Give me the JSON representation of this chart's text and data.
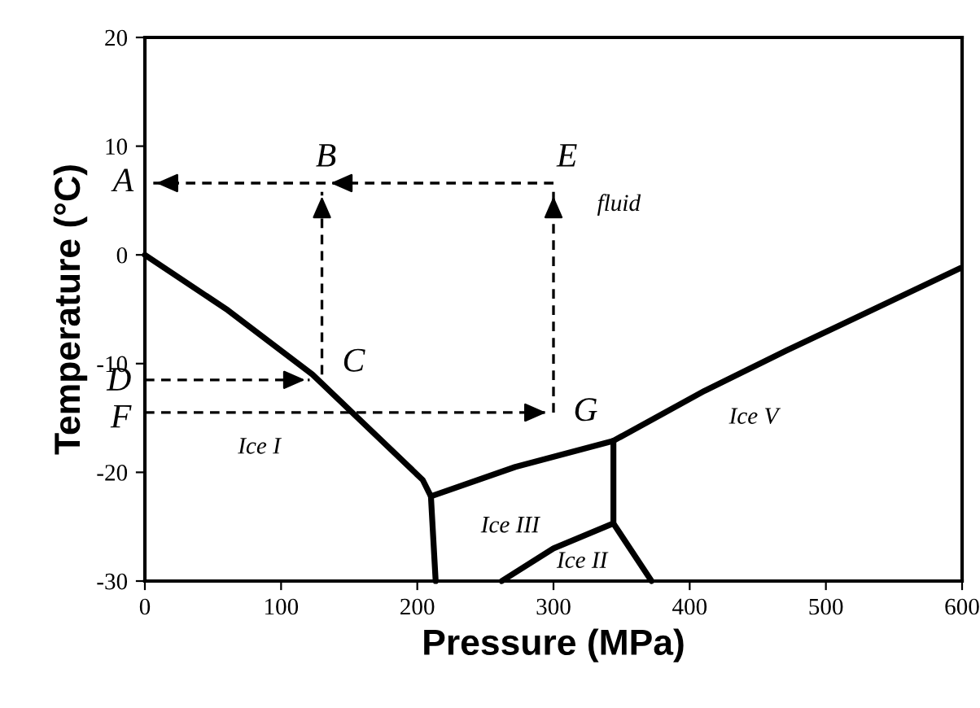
{
  "chart_data": {
    "type": "line",
    "xlabel": "Pressure (MPa)",
    "ylabel": "Temperature (°C)",
    "xlim": [
      0,
      600
    ],
    "xticks": [
      0,
      100,
      200,
      300,
      400,
      500,
      600
    ],
    "ylim": [
      -30,
      20
    ],
    "yticks": [
      -30,
      -20,
      -10,
      0,
      10,
      20
    ],
    "grid": false,
    "legend": false,
    "marker": "none",
    "series": [
      {
        "color": "#000000",
        "line_style": "solid",
        "x": [
          0,
          61,
          123,
          204,
          210,
          213.5
        ],
        "values": [
          0,
          -5.1,
          -11.0,
          -20.7,
          -22.2,
          -30
        ]
      },
      {
        "color": "#000000",
        "line_style": "solid",
        "x": [
          210,
          272,
          344,
          411,
          471,
          599
        ],
        "values": [
          -22.2,
          -19.5,
          -17.1,
          -12.5,
          -8.8,
          -1.2
        ]
      },
      {
        "color": "#000000",
        "line_style": "solid",
        "x": [
          344,
          344,
          372
        ],
        "values": [
          -17.1,
          -24.7,
          -30
        ]
      },
      {
        "color": "#000000",
        "line_style": "solid",
        "x": [
          344,
          300,
          262
        ],
        "values": [
          -24.7,
          -27,
          -30
        ]
      },
      {
        "color": "#000000",
        "line_style": "dashed",
        "x": [
          300,
          133,
          5
        ],
        "values": [
          6.6,
          6.6,
          6.6
        ]
      },
      {
        "color": "#000000",
        "line_style": "dashed",
        "x": [
          130,
          130
        ],
        "values": [
          -11,
          5.8
        ]
      },
      {
        "color": "#000000",
        "line_style": "dashed",
        "x": [
          0,
          121
        ],
        "values": [
          -11.5,
          -11.5
        ]
      },
      {
        "color": "#000000",
        "line_style": "dashed",
        "x": [
          0,
          298
        ],
        "values": [
          -14.5,
          -14.5
        ]
      },
      {
        "color": "#000000",
        "line_style": "dashed",
        "x": [
          300,
          300
        ],
        "values": [
          -14.5,
          5.8
        ]
      }
    ],
    "annotations": [
      {
        "text": "A",
        "x": 5,
        "y": 6.6
      },
      {
        "text": "B",
        "x": 133,
        "y": 6.6
      },
      {
        "text": "E",
        "x": 300,
        "y": 6.6
      },
      {
        "text": "C",
        "x": 130,
        "y": -11
      },
      {
        "text": "D",
        "x": 0,
        "y": -11.5
      },
      {
        "text": "F",
        "x": 0,
        "y": -14.5
      },
      {
        "text": "G",
        "x": 298,
        "y": -14.5
      },
      "fluid",
      "Ice I",
      "Ice III",
      "Ice II",
      "Ice V"
    ]
  }
}
